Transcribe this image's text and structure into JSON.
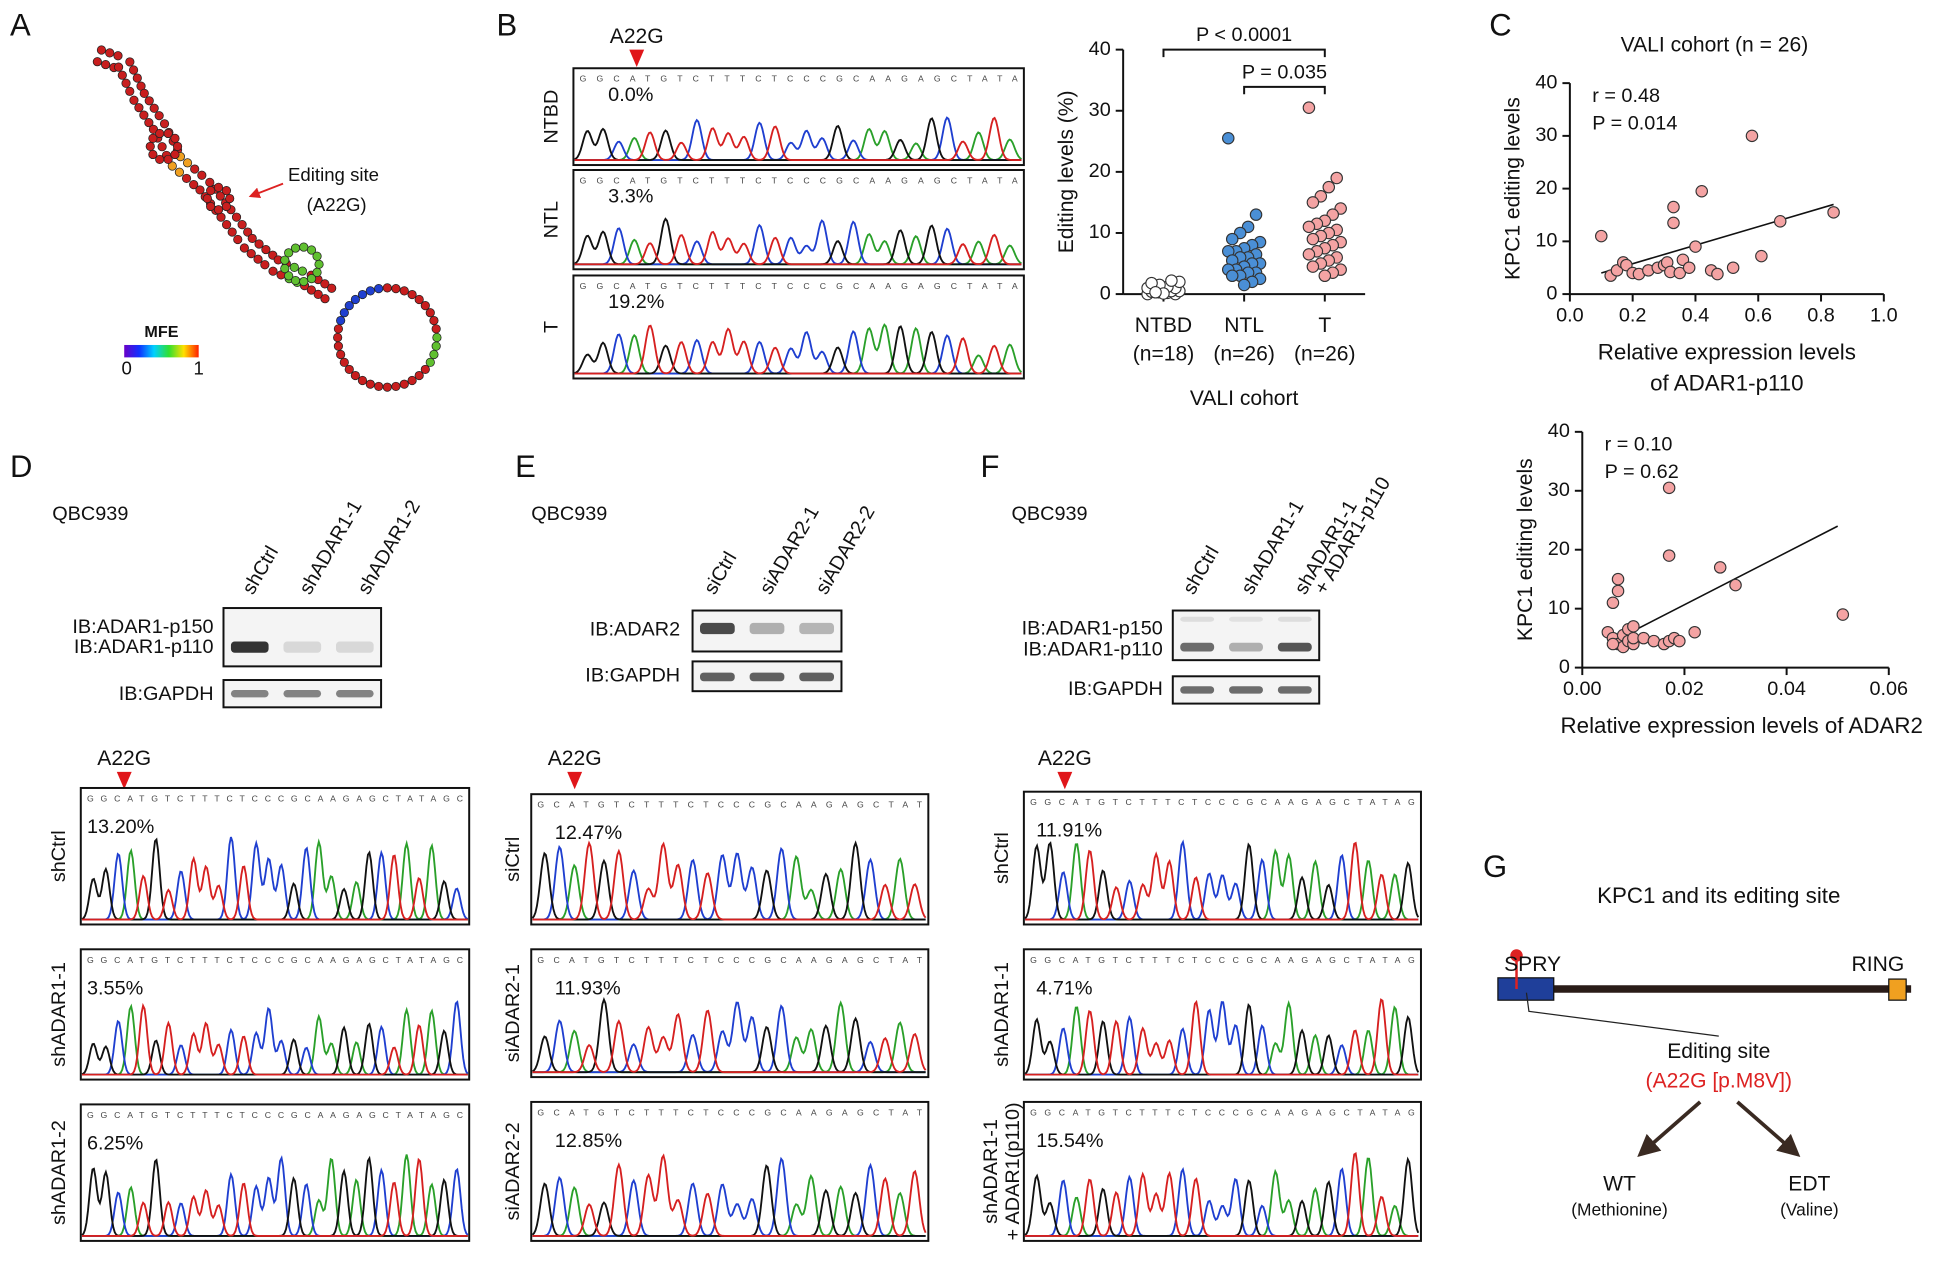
{
  "panel_labels": [
    "A",
    "B",
    "C",
    "D",
    "E",
    "F",
    "G"
  ],
  "panel_a": {
    "annotation": [
      "Editing site",
      "(A22G)"
    ],
    "legend": {
      "title": "MFE",
      "min": "0",
      "max": "1"
    }
  },
  "panel_b": {
    "site": "A22G",
    "sequence": "GGCATGTCTTTCTCCCGCAAGAGCTATA",
    "traces": [
      {
        "label": [
          "NTBD"
        ],
        "level": "0.0%"
      },
      {
        "label": [
          "NTL"
        ],
        "level": "3.3%"
      },
      {
        "label": [
          "T"
        ],
        "level": "19.2%"
      }
    ]
  },
  "panel_d": {
    "cell_line": "QBC939",
    "lanes": [
      [
        "shCtrl"
      ],
      [
        "shADAR1-1"
      ],
      [
        "shADAR1-2"
      ]
    ],
    "blots": [
      "IB:ADAR1-p150",
      "IB:ADAR1-p110",
      "IB:GAPDH"
    ],
    "site": "A22G",
    "sequence": "GGCATGTCTTTCTCCCGCAAGAGCTATAGC",
    "traces": [
      {
        "label": [
          "shCtrl"
        ],
        "level": "13.20%"
      },
      {
        "label": [
          "shADAR1-1"
        ],
        "level": "3.55%"
      },
      {
        "label": [
          "shADAR1-2"
        ],
        "level": "6.25%"
      }
    ]
  },
  "panel_e": {
    "cell_line": "QBC939",
    "lanes": [
      [
        "siCtrl"
      ],
      [
        "siADAR2-1"
      ],
      [
        "siADAR2-2"
      ]
    ],
    "blots": [
      "IB:ADAR2",
      "IB:GAPDH"
    ],
    "site": "A22G",
    "sequence": "GCATGTCTTTCTCCCGCAAGAGCTAT",
    "traces": [
      {
        "label": [
          "siCtrl"
        ],
        "level": "12.47%"
      },
      {
        "label": [
          "siADAR2-1"
        ],
        "level": "11.93%"
      },
      {
        "label": [
          "siADAR2-2"
        ],
        "level": "12.85%"
      }
    ]
  },
  "panel_f": {
    "cell_line": "QBC939",
    "lanes": [
      [
        "shCtrl"
      ],
      [
        "shADAR1-1"
      ],
      [
        "shADAR1-1",
        "+ ADAR1-p110"
      ]
    ],
    "blots": [
      "IB:ADAR1-p150",
      "IB:ADAR1-p110",
      "IB:GAPDH"
    ],
    "site": "A22G",
    "sequence": "GGCATGTCTTTCTCCCGCAAGAGCTATAG",
    "traces": [
      {
        "label": [
          "shCtrl"
        ],
        "level": "11.91%"
      },
      {
        "label": [
          "shADAR1-1"
        ],
        "level": "4.71%"
      },
      {
        "label": [
          "shADAR1-1",
          "+ ADAR1(p110)"
        ],
        "level": "15.54%"
      }
    ]
  },
  "panel_g": {
    "title": "KPC1 and its editing site",
    "domains": [
      "SPRY",
      "RING"
    ],
    "site_label": "Editing site",
    "site": "(A22G [p.M8V])",
    "outcomes": [
      {
        "name": "WT",
        "residue": "(Methionine)"
      },
      {
        "name": "EDT",
        "residue": "(Valine)"
      }
    ]
  },
  "chart_data": [
    {
      "type": "strip",
      "ylabel": "Editing levels (%)",
      "xlabel": "VALI cohort",
      "categories": [
        "NTBD",
        "NTL",
        "T"
      ],
      "category_counts": [
        "(n=18)",
        "(n=26)",
        "(n=26)"
      ],
      "colors": [
        "#ffffff",
        "#4a8fd6",
        "#f4a3a3"
      ],
      "values": [
        [
          0,
          0,
          0.2,
          0.3,
          0.4,
          0.5,
          0.5,
          0.6,
          0.8,
          1,
          1,
          1.2,
          1.5,
          1.8,
          2,
          2.2,
          0.1,
          0.3
        ],
        [
          25.5,
          13,
          11,
          10,
          9,
          8.5,
          8,
          7.5,
          7,
          7,
          6.5,
          6,
          6,
          5.5,
          5,
          5,
          4.5,
          4,
          4,
          3.5,
          3.5,
          3,
          3,
          2.5,
          2,
          1.5
        ],
        [
          30.5,
          19,
          17.5,
          16,
          15,
          14,
          13,
          12,
          11.5,
          11,
          10.5,
          10,
          9.5,
          9,
          8.5,
          8,
          7.5,
          7,
          6.5,
          6,
          5.5,
          5,
          4.5,
          4,
          3.5,
          3
        ]
      ],
      "ylim": [
        0,
        40
      ],
      "yticks": [
        0,
        10,
        20,
        30,
        40
      ],
      "annotations": [
        "P < 0.0001",
        "P = 0.035"
      ]
    },
    {
      "type": "scatter",
      "title": "VALI cohort (n = 26)",
      "xlabel": [
        "Relative expression levels",
        "of ADAR1-p110"
      ],
      "ylabel": "KPC1 editing levels",
      "color": "#f4a3a3",
      "annotations": [
        "r = 0.48",
        "P = 0.014"
      ],
      "x": [
        0.1,
        0.13,
        0.15,
        0.17,
        0.18,
        0.2,
        0.22,
        0.25,
        0.28,
        0.3,
        0.31,
        0.32,
        0.33,
        0.33,
        0.35,
        0.36,
        0.38,
        0.4,
        0.42,
        0.45,
        0.47,
        0.52,
        0.58,
        0.61,
        0.67,
        0.84
      ],
      "y": [
        11,
        3.5,
        4.5,
        6,
        5.5,
        4,
        3.8,
        4.5,
        5,
        5.5,
        6,
        4.2,
        13.5,
        16.5,
        4,
        6.5,
        5,
        9,
        19.5,
        4.5,
        3.8,
        5,
        30,
        7.2,
        13.8,
        15.5
      ],
      "fit": {
        "x": [
          0.1,
          0.84
        ],
        "y": [
          4,
          17
        ]
      },
      "xlim": [
        0,
        1
      ],
      "xticks": [
        {
          "value": 0,
          "label": "0.0"
        },
        0.2,
        0.4,
        0.6,
        0.8,
        {
          "value": 1,
          "label": "1.0"
        }
      ],
      "ylim": [
        0,
        40
      ],
      "yticks": [
        0,
        10,
        20,
        30,
        40
      ]
    },
    {
      "type": "scatter",
      "xlabel": [
        "Relative expression levels of ADAR2"
      ],
      "ylabel": "KPC1 editing levels",
      "color": "#f4a3a3",
      "annotations": [
        "r = 0.10",
        "P = 0.62"
      ],
      "x": [
        0.005,
        0.006,
        0.006,
        0.007,
        0.007,
        0.007,
        0.008,
        0.008,
        0.009,
        0.009,
        0.01,
        0.01,
        0.01,
        0.012,
        0.014,
        0.016,
        0.017,
        0.017,
        0.017,
        0.018,
        0.019,
        0.022,
        0.027,
        0.03,
        0.051,
        0.006
      ],
      "y": [
        6,
        5,
        11,
        15,
        13,
        4,
        3.5,
        5.5,
        4.5,
        6.5,
        4,
        5,
        7,
        5,
        4.5,
        4,
        30.5,
        19,
        4.5,
        5,
        4.5,
        6,
        17,
        14,
        9,
        4
      ],
      "fit": {
        "x": [
          0.005,
          0.05
        ],
        "y": [
          4,
          24
        ]
      },
      "xlim": [
        0,
        0.06
      ],
      "xticks": [
        {
          "value": 0,
          "label": "0.00"
        },
        {
          "value": 0.02,
          "label": "0.02"
        },
        {
          "value": 0.04,
          "label": "0.04"
        },
        {
          "value": 0.06,
          "label": "0.06"
        }
      ],
      "ylim": [
        0,
        40
      ],
      "yticks": [
        0,
        10,
        20,
        30,
        40
      ]
    }
  ]
}
